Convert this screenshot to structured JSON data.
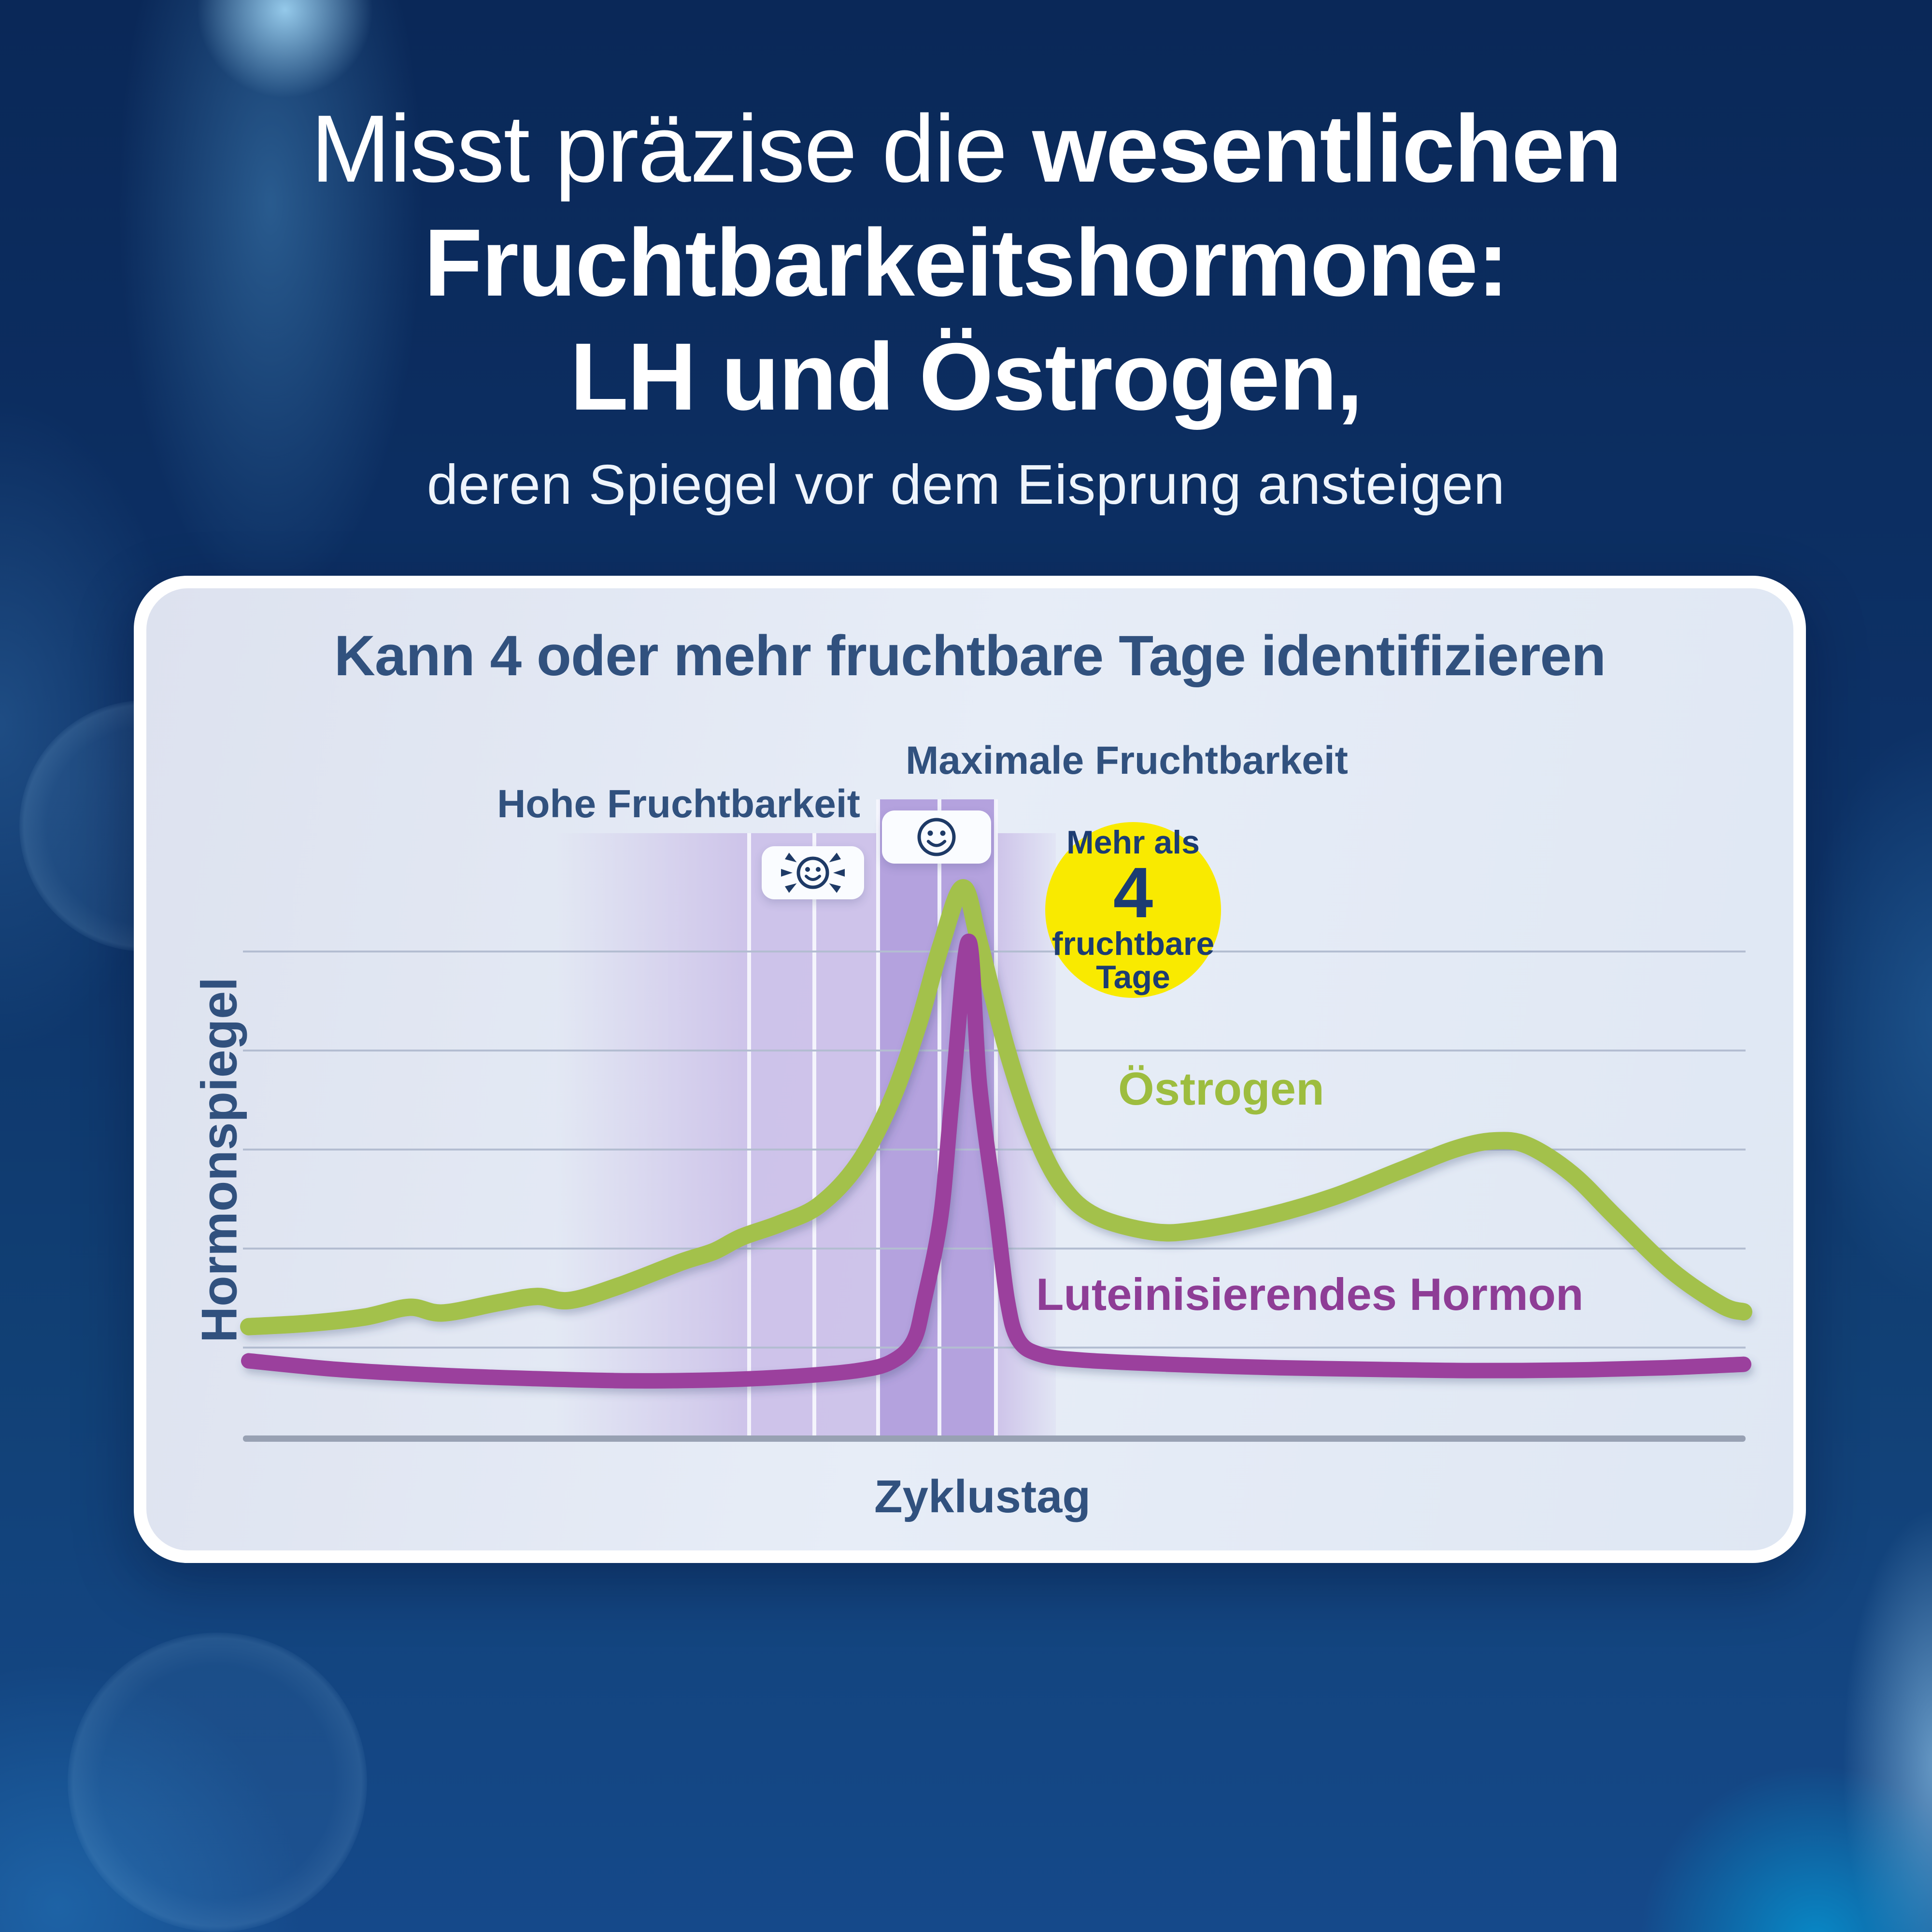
{
  "heading": {
    "line1_light": "Misst präzise die ",
    "line1_bold": "wesentlichen",
    "line2_bold": "Fruchtbarkeitshormone:",
    "line3_bold": "LH und Östrogen,",
    "subtitle": "deren Spiegel vor dem Eisprung ansteigen"
  },
  "card": {
    "title": "Kann 4 oder mehr fruchtbare Tage identifizieren",
    "high_fertility_label": "Hohe Fruchtbarkeit",
    "peak_fertility_label": "Maximale Fruchtbarkeit",
    "estrogen_label": "Östrogen",
    "lh_label": "Luteinisierendes Hormon",
    "ylabel": "Hormonspiegel",
    "xlabel": "Zyklustag",
    "badge": {
      "line1": "Mehr als",
      "number": "4",
      "line2": "fruchtbare",
      "line3": "Tage"
    },
    "icons": {
      "flashing_smiley": "flashing-smiley-icon (hohe Fruchtbarkeit)",
      "solid_smiley": "smiley-icon (maximale Fruchtbarkeit)"
    }
  },
  "colors": {
    "estrogen": "#a3c14c",
    "lh": "#9b3f9d",
    "estrogen_text": "#9dbd3f",
    "lh_text": "#8e3d96",
    "navy_text": "#31517e",
    "badge_yellow": "#f9ea00",
    "band_high": "#c9bce7",
    "band_peak": "#b19edc",
    "background_navy": "#0d3166",
    "card_bg": "#e4eaf4"
  },
  "chart_data": {
    "type": "line",
    "title": "Kann 4 oder mehr fruchtbare Tage identifizieren",
    "xlabel": "Zyklustag",
    "ylabel": "Hormonspiegel",
    "x_range": [
      1,
      28
    ],
    "y_range_relative": [
      0,
      100
    ],
    "grid": "5 horizontal gridlines, no tick labels (qualitative axes)",
    "legend_position": "inline labels next to curves",
    "annotation_badge": "Mehr als 4 fruchtbare Tage",
    "fertility_bands": {
      "high_fertility_days_approx": [
        10,
        12.4
      ],
      "peak_fertility_days_approx": [
        12.4,
        14.5
      ],
      "post_peak_high_day_approx": [
        14.5,
        15.6
      ]
    },
    "series": [
      {
        "name": "Östrogen",
        "color": "#a3c14c",
        "points": [
          [
            1,
            19.6
          ],
          [
            2.1,
            20.2
          ],
          [
            3.1,
            21.3
          ],
          [
            3.9,
            23.0
          ],
          [
            4.5,
            22.0
          ],
          [
            5.5,
            23.8
          ],
          [
            6.2,
            24.9
          ],
          [
            6.8,
            24.2
          ],
          [
            7.7,
            26.8
          ],
          [
            8.8,
            30.9
          ],
          [
            9.4,
            32.8
          ],
          [
            9.9,
            35.3
          ],
          [
            10.6,
            37.7
          ],
          [
            11.3,
            40.9
          ],
          [
            12.0,
            48.1
          ],
          [
            12.6,
            59.1
          ],
          [
            13.1,
            72.8
          ],
          [
            13.5,
            86.4
          ],
          [
            13.9,
            96.6
          ],
          [
            14.2,
            86.8
          ],
          [
            14.7,
            68.0
          ],
          [
            15.2,
            53.5
          ],
          [
            15.7,
            44.1
          ],
          [
            16.3,
            39.0
          ],
          [
            17.3,
            36.3
          ],
          [
            18.1,
            36.5
          ],
          [
            19.4,
            39.0
          ],
          [
            20.6,
            42.4
          ],
          [
            21.8,
            47.0
          ],
          [
            22.8,
            50.8
          ],
          [
            23.5,
            52.2
          ],
          [
            24.1,
            51.4
          ],
          [
            24.9,
            46.4
          ],
          [
            25.7,
            38.7
          ],
          [
            26.7,
            29.4
          ],
          [
            27.6,
            23.4
          ],
          [
            28,
            22.2
          ]
        ]
      },
      {
        "name": "Luteinisierendes Hormon",
        "color": "#9b3f9d",
        "points": [
          [
            1,
            13.6
          ],
          [
            2.6,
            12.1
          ],
          [
            4.4,
            11.1
          ],
          [
            6.1,
            10.5
          ],
          [
            7.9,
            10.1
          ],
          [
            9.6,
            10.3
          ],
          [
            10.9,
            10.9
          ],
          [
            12.0,
            11.9
          ],
          [
            12.6,
            13.4
          ],
          [
            13.0,
            17.0
          ],
          [
            13.2,
            24.3
          ],
          [
            13.5,
            39.0
          ],
          [
            13.7,
            59.4
          ],
          [
            14.0,
            87.2
          ],
          [
            14.2,
            61.9
          ],
          [
            14.5,
            39.7
          ],
          [
            14.7,
            24.3
          ],
          [
            14.9,
            17.3
          ],
          [
            15.3,
            14.7
          ],
          [
            16.1,
            13.7
          ],
          [
            17.9,
            12.9
          ],
          [
            19.6,
            12.4
          ],
          [
            21.4,
            12.1
          ],
          [
            23.1,
            11.9
          ],
          [
            24.9,
            12.0
          ],
          [
            26.6,
            12.4
          ],
          [
            28,
            13.0
          ]
        ]
      }
    ]
  }
}
